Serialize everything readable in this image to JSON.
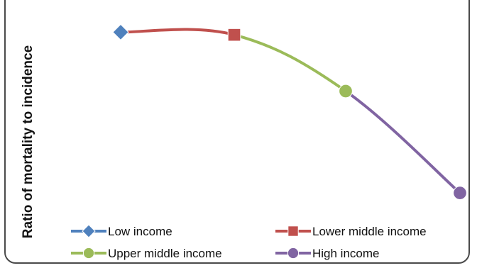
{
  "chart_data": {
    "type": "line",
    "title": "",
    "ylabel": "Ratio of mortality to incidence",
    "xlabel": "",
    "categories": [
      "Low income",
      "Lower middle income",
      "Upper middle income",
      "High income"
    ],
    "values": [
      0.88,
      0.87,
      0.66,
      0.28
    ],
    "ylim": [
      0,
      1
    ],
    "segment_colors": [
      "#c0504d",
      "#9bbb59",
      "#8064a2"
    ],
    "series": [
      {
        "name": "Low income",
        "marker": "diamond",
        "color": "#4f81bd"
      },
      {
        "name": "Lower middle income",
        "marker": "square",
        "color": "#c0504d"
      },
      {
        "name": "Upper middle income",
        "marker": "circle",
        "color": "#9bbb59"
      },
      {
        "name": "High income",
        "marker": "circle",
        "color": "#8064a2"
      }
    ],
    "legend_position": "bottom",
    "grid": false
  }
}
